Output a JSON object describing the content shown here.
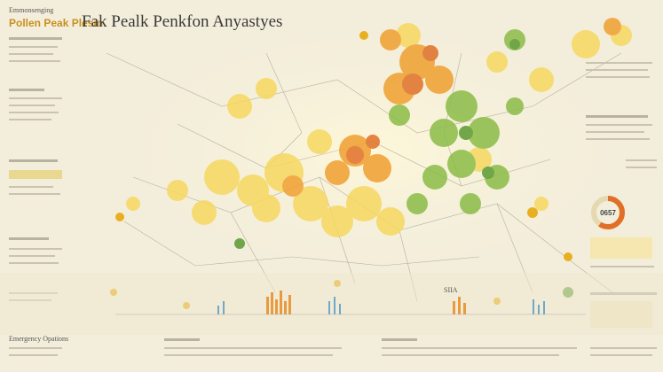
{
  "header": {
    "kicker": "Emmonsenging",
    "subtitle": "Pollen Peak Plesin",
    "title": "Fak Pealk Penkfon Anyastyes"
  },
  "callouts": {
    "gauge": "0657",
    "chart_label": "SIIA"
  },
  "footer": {
    "section": "Emergency Opations"
  }
}
